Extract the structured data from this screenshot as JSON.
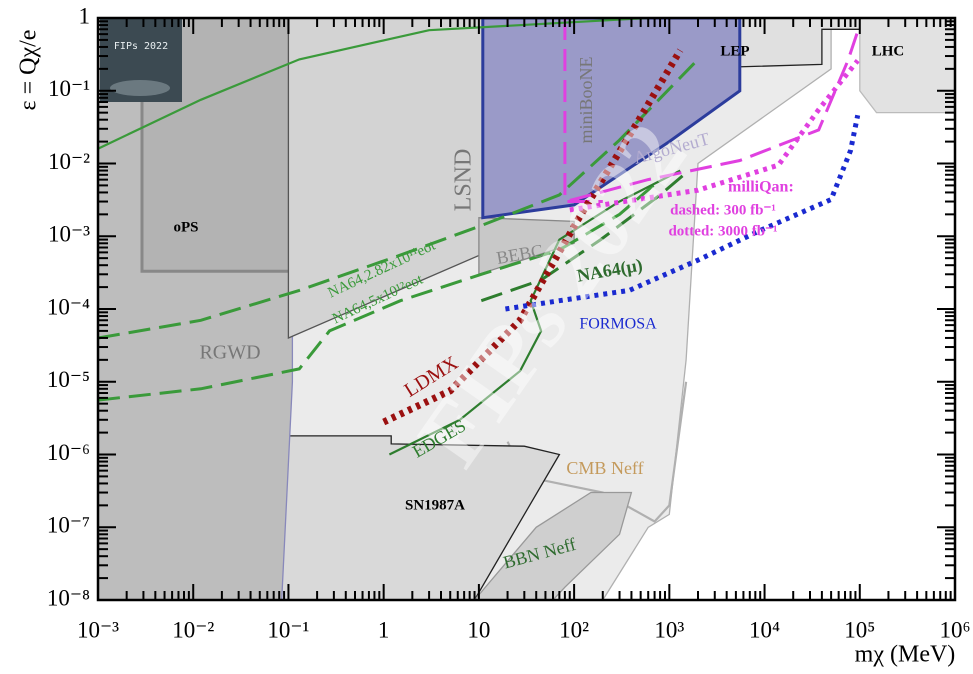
{
  "chart_data": {
    "type": "exclusion",
    "x_label": "mχ (MeV)",
    "y_label": "ε = Qχ/e",
    "log_x": true,
    "log_y": true,
    "xlim": [
      0.001,
      1000000
    ],
    "ylim": [
      1e-08,
      1
    ],
    "xticks": [
      {
        "value": 0.001,
        "label": "10⁻³"
      },
      {
        "value": 0.01,
        "label": "10⁻²"
      },
      {
        "value": 0.1,
        "label": "10⁻¹"
      },
      1,
      10,
      {
        "value": 100,
        "label": "10²"
      },
      {
        "value": 1000,
        "label": "10³"
      },
      {
        "value": 10000,
        "label": "10⁴"
      },
      {
        "value": 100000,
        "label": "10⁵"
      },
      {
        "value": 1000000,
        "label": "10⁶"
      }
    ],
    "yticks": [
      {
        "value": 1e-08,
        "label": "10⁻⁸"
      },
      {
        "value": 1e-07,
        "label": "10⁻⁷"
      },
      {
        "value": 1e-06,
        "label": "10⁻⁶"
      },
      {
        "value": 1e-05,
        "label": "10⁻⁵"
      },
      {
        "value": 0.0001,
        "label": "10⁻⁴"
      },
      {
        "value": 0.001,
        "label": "10⁻³"
      },
      {
        "value": 0.01,
        "label": "10⁻²"
      },
      {
        "value": 0.1,
        "label": "10⁻¹"
      },
      1
    ],
    "badge": "FIPs 2022",
    "watermark": "FIPs 2022",
    "milliqan_label": "milliQan:",
    "series": [
      {
        "kind": "region",
        "fill": "#ebebeb",
        "color": "#b0b0b0",
        "x": [
          0.09,
          0.11,
          50000,
          50000,
          2000,
          1500,
          1000,
          600,
          200
        ],
        "y": [
          1e-08,
          1,
          1,
          0.2,
          0.01,
          2e-05,
          1.5e-07,
          1e-07,
          1e-08
        ]
      },
      {
        "name": "CMB Neff",
        "kind": "line",
        "dash": "solid",
        "color": "#b0b0b0",
        "label_color": "#c49a5c",
        "x": [
          20,
          30,
          200,
          700,
          1000,
          1500
        ],
        "y": [
          1.5e-06,
          5e-07,
          3e-07,
          1.2e-07,
          2e-07,
          1e-05
        ]
      },
      {
        "name": "SN1987A",
        "kind": "region",
        "fill": "#d9d9d9",
        "color": "#222222",
        "label_color": "#000000",
        "x": [
          0.001,
          1.2,
          1.2,
          30,
          70,
          25,
          9,
          0.001
        ],
        "y": [
          1.8e-06,
          1.8e-06,
          1.4e-06,
          1.3e-06,
          1e-06,
          1e-07,
          1e-08,
          1e-08
        ]
      },
      {
        "name": "BBN Neff",
        "kind": "region",
        "fill": "#cfcfcf",
        "color": "#999999",
        "label_color": "#2e6b2e",
        "x": [
          9,
          40,
          150,
          400,
          300,
          80,
          60
        ],
        "y": [
          1e-08,
          1e-07,
          3e-07,
          3e-07,
          8e-08,
          1.5e-08,
          1e-08
        ]
      },
      {
        "name": "RGWD",
        "kind": "region",
        "fill": "#bdbdbd",
        "color": "#8888bb",
        "label_color": "#777777",
        "x": [
          0.001,
          0.11,
          0.11,
          0.085,
          0.001
        ],
        "y": [
          1,
          1,
          1e-05,
          1e-08,
          1e-08
        ]
      },
      {
        "name": "oPS",
        "kind": "region",
        "fill": "#b3b3b3",
        "color": "#888888",
        "label_color": "#000000",
        "x": [
          0.0029,
          0.0029,
          0.9,
          1,
          1
        ],
        "y": [
          1,
          0.00033,
          0.00033,
          0.0004,
          1
        ]
      },
      {
        "name": "LSND",
        "kind": "region",
        "fill": "#d3d3d3",
        "color": "#555555",
        "label_color": "#777777",
        "x": [
          0.1,
          0.1,
          12,
          12,
          60
        ],
        "y": [
          4e-05,
          1,
          1,
          0.0018,
          0.0015
        ]
      },
      {
        "name": "BEBC",
        "kind": "region",
        "fill": "#c8c8c8",
        "color": "#888888",
        "label_color": "#888888",
        "x": [
          10,
          100,
          100,
          10
        ],
        "y": [
          0.0003,
          0.0008,
          0.0016,
          0.0018
        ]
      },
      {
        "name": "LEP",
        "kind": "region",
        "fill": "#e0e0e0",
        "color": "#222222",
        "label_color": "#000000",
        "x": [
          12,
          500,
          700,
          1000,
          40000,
          40000,
          100000,
          100000,
          12
        ],
        "y": [
          0.1,
          0.15,
          0.05,
          0.2,
          0.23,
          0.7,
          0.7,
          1,
          1
        ]
      },
      {
        "name": "LHC",
        "kind": "region",
        "fill": "#e2e2e2",
        "color": "#bbbbbb",
        "label_color": "#000000",
        "x": [
          100000,
          1000000,
          1000000,
          150000,
          100000
        ],
        "y": [
          1,
          1,
          0.05,
          0.05,
          0.1
        ]
      },
      {
        "name": "ArgoNeuT",
        "kind": "region",
        "fill": "#9a9ac8",
        "color": "#2c3c9c",
        "label_color": "#b4acd0",
        "x": [
          11,
          5500,
          5500,
          1000,
          100,
          11
        ],
        "y": [
          1,
          1,
          0.1,
          0.02,
          0.0027,
          0.0018
        ]
      },
      {
        "name": "miniBooNE",
        "kind": "line",
        "dash": "dashed",
        "color": "#e040e0",
        "label_color": "#777777",
        "x": [
          80,
          80,
          200
        ],
        "y": [
          1,
          0.003,
          0.003
        ]
      },
      {
        "kind": "line",
        "dash": "solid",
        "color": "#3a9a3a",
        "x": [
          0.001,
          0.012,
          0.13,
          3,
          600
        ],
        "y": [
          0.016,
          0.075,
          0.27,
          0.68,
          1
        ]
      },
      {
        "name": "NA64,2.82x10¹¹eot",
        "kind": "line",
        "dash": "dashed",
        "color": "#3a9a3a",
        "label_color": "#3a9a3a",
        "x": [
          0.001,
          0.012,
          0.13,
          1.5,
          10.6,
          70,
          300,
          2000
        ],
        "y": [
          4e-05,
          7e-05,
          0.00018,
          0.00055,
          0.0014,
          0.0037,
          0.021,
          0.27
        ]
      },
      {
        "name": "NA64,5x10¹²eot",
        "kind": "line",
        "dash": "dashed",
        "color": "#3a9a3a",
        "label_color": "#3a9a3a",
        "x": [
          0.001,
          0.012,
          0.13,
          0.27,
          1.5,
          10.6,
          70,
          300,
          800
        ],
        "y": [
          5.6e-06,
          8e-06,
          1.5e-05,
          5e-05,
          0.00013,
          0.0003,
          0.00065,
          0.002,
          0.006
        ]
      },
      {
        "name": "NA64(μ)",
        "kind": "line",
        "dash": "dashed",
        "color": "#2e7d2e",
        "label_color": "#2e6b2e",
        "x": [
          10.6,
          45,
          190,
          800,
          1600
        ],
        "y": [
          0.00013,
          0.00025,
          0.0009,
          0.0037,
          0.008
        ]
      },
      {
        "name": "EDGES",
        "kind": "line",
        "dash": "solid",
        "color": "#2e7d2e",
        "label_color": "#2e7d2e",
        "x": [
          1.15,
          6.3,
          27,
          45,
          35,
          70,
          300,
          1300
        ],
        "y": [
          1e-06,
          3e-06,
          1.4e-05,
          5e-05,
          0.00013,
          0.0009,
          0.003,
          0.008
        ]
      },
      {
        "name": "LDMX",
        "kind": "line",
        "dash": "dotted",
        "color": "#9b1010",
        "label_color": "#9b1010",
        "x": [
          1,
          5,
          27,
          110,
          480,
          1300
        ],
        "y": [
          2.8e-06,
          7.5e-06,
          7e-05,
          0.0017,
          0.04,
          0.36
        ]
      },
      {
        "name": "FORMOSA",
        "kind": "line",
        "dash": "dotted",
        "color": "#1a2ad0",
        "label_color": "#1a2ad0",
        "x": [
          19,
          70,
          380,
          2000,
          9000,
          50000,
          80000,
          95000
        ],
        "y": [
          0.0001,
          0.00013,
          0.00018,
          0.00047,
          0.0012,
          0.0032,
          0.015,
          0.046
        ]
      },
      {
        "name": "dashed: 300 fb⁻¹",
        "kind": "line",
        "dash": "dashed",
        "color": "#e040e0",
        "label_color": "#e040e0",
        "x": [
          90,
          600,
          5500,
          37000,
          75000,
          100000
        ],
        "y": [
          0.0031,
          0.006,
          0.011,
          0.029,
          0.26,
          0.8
        ]
      },
      {
        "name": "dotted: 3000 fb⁻¹",
        "kind": "line",
        "dash": "dotted",
        "color": "#e040e0",
        "label_color": "#e040e0",
        "x": [
          90,
          2000,
          14000,
          37000,
          95000
        ],
        "y": [
          0.0023,
          0.0043,
          0.0095,
          0.055,
          0.26
        ]
      }
    ]
  }
}
